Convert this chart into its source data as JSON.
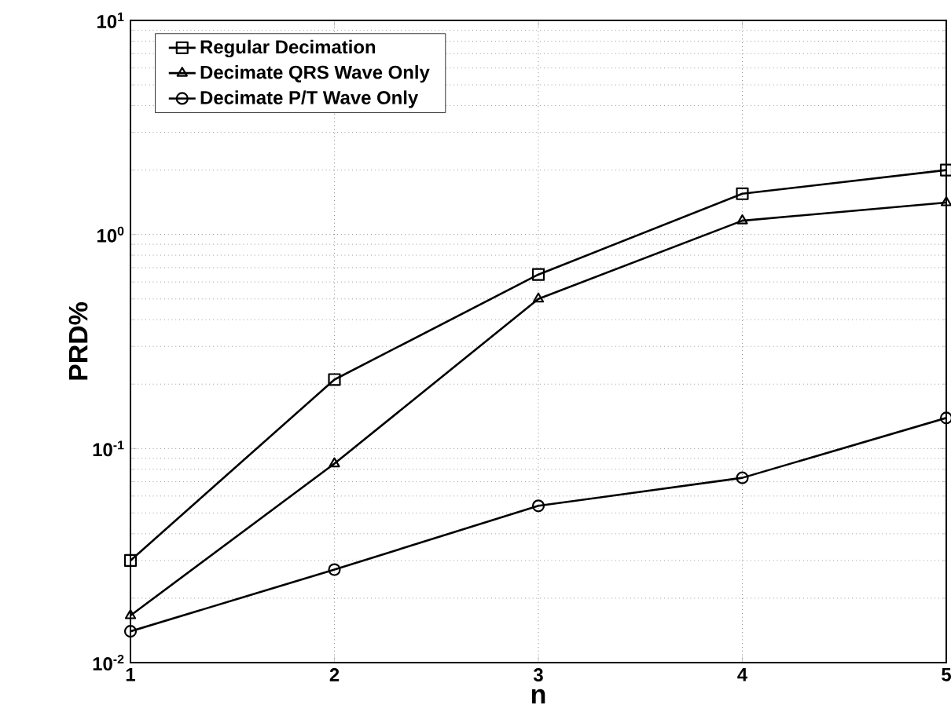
{
  "chart_data": {
    "type": "line",
    "xlabel": "n",
    "ylabel": "PRD%",
    "x": [
      1,
      2,
      3,
      4,
      5
    ],
    "series": [
      {
        "name": "Regular Decimation",
        "color": "#000000",
        "marker": "square",
        "values": [
          0.03,
          0.21,
          0.65,
          1.55,
          2.0
        ]
      },
      {
        "name": "Decimate QRS Wave Only",
        "color": "#000000",
        "marker": "triangle",
        "values": [
          0.0166,
          0.085,
          0.5,
          1.16,
          1.41
        ]
      },
      {
        "name": "Decimate P/T Wave Only",
        "color": "#000000",
        "marker": "circle",
        "values": [
          0.014,
          0.0272,
          0.054,
          0.073,
          0.139
        ]
      }
    ],
    "xlim": [
      1,
      5
    ],
    "xticks": [
      1,
      2,
      3,
      4,
      5
    ],
    "ylim": [
      0.01,
      10
    ],
    "yticks": [
      {
        "value": 0.01,
        "label": "10$^{-2}$"
      },
      {
        "value": 0.1,
        "label": "10$^{-1}$"
      },
      {
        "value": 1,
        "label": "10$^{0}$"
      },
      {
        "value": 10,
        "label": "10$^{1}$"
      }
    ],
    "log": "y",
    "grid": true,
    "legend": "top left",
    "line_style": "solid"
  }
}
